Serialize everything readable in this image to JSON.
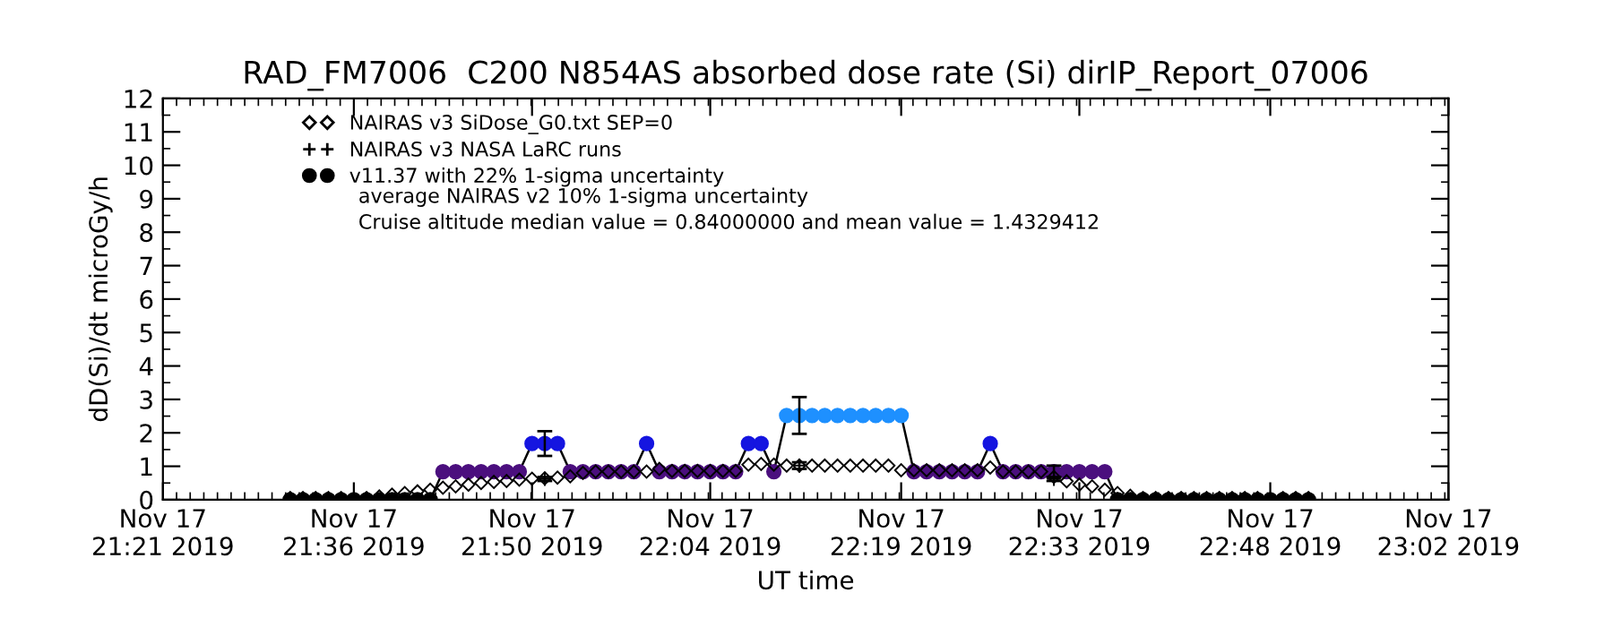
{
  "chart_data": {
    "type": "line",
    "title": "RAD_FM7006  C200 N854AS absorbed dose rate (Si) dirIP_Report_07006",
    "xlabel": "UT time",
    "ylabel": "dD(Si)/dt microGy/h",
    "xlim": [
      "2019-11-17T21:21",
      "2019-11-17T23:02"
    ],
    "xticks": [
      {
        "value": "2019-11-17T21:21",
        "label": "Nov 17\n21:21 2019"
      },
      {
        "value": "2019-11-17T21:36",
        "label": "Nov 17\n21:36 2019"
      },
      {
        "value": "2019-11-17T21:50",
        "label": "Nov 17\n21:50 2019"
      },
      {
        "value": "2019-11-17T22:04",
        "label": "Nov 17\n22:04 2019"
      },
      {
        "value": "2019-11-17T22:19",
        "label": "Nov 17\n22:19 2019"
      },
      {
        "value": "2019-11-17T22:33",
        "label": "Nov 17\n22:33 2019"
      },
      {
        "value": "2019-11-17T22:48",
        "label": "Nov 17\n22:48 2019"
      },
      {
        "value": "2019-11-17T23:02",
        "label": "Nov 17\n23:02 2019"
      }
    ],
    "ylim": [
      0,
      12
    ],
    "yticks": [
      0,
      1,
      2,
      3,
      4,
      5,
      6,
      7,
      8,
      9,
      10,
      11,
      12
    ],
    "legend": "top left",
    "annotations": [
      "average NAIRAS v2 10% 1-sigma uncertainty",
      "Cruise altitude median value = 0.84000000 and mean value = 1.4329412"
    ],
    "series": [
      {
        "name": "NAIRAS v3 SiDose_G0.txt SEP=0",
        "type": "scatter",
        "marker": "diamond",
        "color": "#000000",
        "x": [
          "2019-11-17T21:31",
          "2019-11-17T21:32",
          "2019-11-17T21:33",
          "2019-11-17T21:34",
          "2019-11-17T21:35",
          "2019-11-17T21:36",
          "2019-11-17T21:37",
          "2019-11-17T21:38",
          "2019-11-17T21:39",
          "2019-11-17T21:40",
          "2019-11-17T21:41",
          "2019-11-17T21:42",
          "2019-11-17T21:43",
          "2019-11-17T21:44",
          "2019-11-17T21:45",
          "2019-11-17T21:46",
          "2019-11-17T21:47",
          "2019-11-17T21:48",
          "2019-11-17T21:49",
          "2019-11-17T21:50",
          "2019-11-17T21:51",
          "2019-11-17T21:52",
          "2019-11-17T21:53",
          "2019-11-17T21:54",
          "2019-11-17T21:55",
          "2019-11-17T21:56",
          "2019-11-17T21:57",
          "2019-11-17T21:58",
          "2019-11-17T21:59",
          "2019-11-17T22:00",
          "2019-11-17T22:01",
          "2019-11-17T22:02",
          "2019-11-17T22:03",
          "2019-11-17T22:04",
          "2019-11-17T22:05",
          "2019-11-17T22:06",
          "2019-11-17T22:07",
          "2019-11-17T22:08",
          "2019-11-17T22:09",
          "2019-11-17T22:10",
          "2019-11-17T22:11",
          "2019-11-17T22:12",
          "2019-11-17T22:13",
          "2019-11-17T22:14",
          "2019-11-17T22:15",
          "2019-11-17T22:16",
          "2019-11-17T22:17",
          "2019-11-17T22:18",
          "2019-11-17T22:19",
          "2019-11-17T22:20",
          "2019-11-17T22:21",
          "2019-11-17T22:22",
          "2019-11-17T22:23",
          "2019-11-17T22:24",
          "2019-11-17T22:25",
          "2019-11-17T22:26",
          "2019-11-17T22:27",
          "2019-11-17T22:28",
          "2019-11-17T22:29",
          "2019-11-17T22:30",
          "2019-11-17T22:31",
          "2019-11-17T22:32",
          "2019-11-17T22:33",
          "2019-11-17T22:34",
          "2019-11-17T22:35",
          "2019-11-17T22:36",
          "2019-11-17T22:37",
          "2019-11-17T22:38",
          "2019-11-17T22:39",
          "2019-11-17T22:40",
          "2019-11-17T22:41",
          "2019-11-17T22:42",
          "2019-11-17T22:43",
          "2019-11-17T22:44",
          "2019-11-17T22:45",
          "2019-11-17T22:46",
          "2019-11-17T22:47",
          "2019-11-17T22:48",
          "2019-11-17T22:49",
          "2019-11-17T22:50",
          "2019-11-17T22:51"
        ],
        "values": [
          0.05,
          0.05,
          0.05,
          0.05,
          0.05,
          null,
          0.05,
          0.1,
          0.15,
          0.2,
          0.25,
          0.3,
          0.36,
          0.4,
          0.45,
          0.5,
          0.53,
          0.56,
          0.6,
          0.63,
          0.64,
          0.66,
          0.7,
          0.8,
          0.84,
          0.84,
          0.84,
          0.84,
          0.84,
          0.92,
          0.86,
          0.86,
          0.86,
          0.86,
          0.86,
          0.86,
          1.05,
          1.07,
          1.05,
          1.02,
          1.02,
          1.02,
          1.02,
          1.02,
          1.02,
          1.02,
          1.02,
          1.02,
          0.88,
          0.88,
          0.88,
          0.88,
          0.88,
          0.88,
          0.88,
          0.96,
          0.84,
          0.84,
          0.84,
          0.84,
          0.68,
          0.55,
          0.45,
          0.4,
          0.3,
          0.2,
          0.12,
          0.05,
          0.05,
          0.05,
          0.05,
          0.05,
          0.05,
          0.05,
          0.05,
          0.05,
          0.05,
          null,
          0.05,
          0.05,
          0.05
        ]
      },
      {
        "name": "NAIRAS v3 NASA LaRC runs",
        "type": "scatter",
        "marker": "cross",
        "color": "#000000",
        "x": [
          "2019-11-17T21:51",
          "2019-11-17T22:11",
          "2019-11-17T22:31"
        ],
        "values": [
          0.62,
          1.02,
          0.62
        ],
        "errors": [
          0.06,
          0.1,
          0.06
        ]
      },
      {
        "name": "v11.37 with 22% 1-sigma uncertainty",
        "marker": "circle",
        "color": "#000000",
        "x": [
          "2019-11-17T21:31",
          "2019-11-17T21:32",
          "2019-11-17T21:33",
          "2019-11-17T21:34",
          "2019-11-17T21:35",
          "2019-11-17T21:36",
          "2019-11-17T21:37",
          "2019-11-17T21:38",
          "2019-11-17T21:39",
          "2019-11-17T21:40",
          "2019-11-17T21:41",
          "2019-11-17T21:42",
          "2019-11-17T21:43",
          "2019-11-17T21:44",
          "2019-11-17T21:45",
          "2019-11-17T21:46",
          "2019-11-17T21:47",
          "2019-11-17T21:48",
          "2019-11-17T21:49",
          "2019-11-17T21:50",
          "2019-11-17T21:51",
          "2019-11-17T21:52",
          "2019-11-17T21:53",
          "2019-11-17T21:54",
          "2019-11-17T21:55",
          "2019-11-17T21:56",
          "2019-11-17T21:57",
          "2019-11-17T21:58",
          "2019-11-17T21:59",
          "2019-11-17T22:00",
          "2019-11-17T22:01",
          "2019-11-17T22:02",
          "2019-11-17T22:03",
          "2019-11-17T22:04",
          "2019-11-17T22:05",
          "2019-11-17T22:06",
          "2019-11-17T22:07",
          "2019-11-17T22:08",
          "2019-11-17T22:09",
          "2019-11-17T22:10",
          "2019-11-17T22:11",
          "2019-11-17T22:12",
          "2019-11-17T22:13",
          "2019-11-17T22:14",
          "2019-11-17T22:15",
          "2019-11-17T22:16",
          "2019-11-17T22:17",
          "2019-11-17T22:18",
          "2019-11-17T22:19",
          "2019-11-17T22:20",
          "2019-11-17T22:21",
          "2019-11-17T22:22",
          "2019-11-17T22:23",
          "2019-11-17T22:24",
          "2019-11-17T22:25",
          "2019-11-17T22:26",
          "2019-11-17T22:27",
          "2019-11-17T22:28",
          "2019-11-17T22:29",
          "2019-11-17T22:30",
          "2019-11-17T22:31",
          "2019-11-17T22:32",
          "2019-11-17T22:33",
          "2019-11-17T22:34",
          "2019-11-17T22:35",
          "2019-11-17T22:36",
          "2019-11-17T22:37",
          "2019-11-17T22:38",
          "2019-11-17T22:39",
          "2019-11-17T22:40",
          "2019-11-17T22:41",
          "2019-11-17T22:42",
          "2019-11-17T22:43",
          "2019-11-17T22:44",
          "2019-11-17T22:45",
          "2019-11-17T22:46",
          "2019-11-17T22:47",
          "2019-11-17T22:48",
          "2019-11-17T22:49",
          "2019-11-17T22:50",
          "2019-11-17T22:51"
        ],
        "values": [
          0,
          0,
          0,
          0,
          0,
          0,
          0,
          0,
          0,
          0,
          0,
          0,
          0.84,
          0.84,
          0.84,
          0.84,
          0.84,
          0.84,
          0.84,
          1.68,
          1.68,
          1.68,
          0.84,
          0.84,
          0.84,
          0.84,
          0.84,
          0.84,
          1.68,
          0.84,
          0.84,
          0.84,
          0.84,
          0.84,
          0.84,
          0.84,
          1.68,
          1.68,
          0.84,
          2.52,
          2.52,
          2.52,
          2.52,
          2.52,
          2.52,
          2.52,
          2.52,
          2.52,
          2.52,
          0.84,
          0.84,
          0.84,
          0.84,
          0.84,
          0.84,
          1.68,
          0.84,
          0.84,
          0.84,
          0.84,
          0.84,
          0.84,
          0.84,
          0.84,
          0.84,
          0,
          0,
          0,
          0,
          0,
          0,
          0,
          0,
          0,
          0,
          0,
          0,
          0,
          0,
          0,
          0
        ],
        "colors": [
          "#000000",
          "#000000",
          "#000000",
          "#000000",
          "#000000",
          "#000000",
          "#000000",
          "#000000",
          "#000000",
          "#000000",
          "#000000",
          "#000000",
          "#4b0f7e",
          "#4b0f7e",
          "#4b0f7e",
          "#4b0f7e",
          "#4b0f7e",
          "#4b0f7e",
          "#4b0f7e",
          "#1515e0",
          "#1515e0",
          "#1515e0",
          "#4b0f7e",
          "#4b0f7e",
          "#4b0f7e",
          "#4b0f7e",
          "#4b0f7e",
          "#4b0f7e",
          "#1515e0",
          "#4b0f7e",
          "#4b0f7e",
          "#4b0f7e",
          "#4b0f7e",
          "#4b0f7e",
          "#4b0f7e",
          "#4b0f7e",
          "#1515e0",
          "#1515e0",
          "#4b0f7e",
          "#1e90ff",
          "#1e90ff",
          "#1e90ff",
          "#1e90ff",
          "#1e90ff",
          "#1e90ff",
          "#1e90ff",
          "#1e90ff",
          "#1e90ff",
          "#1e90ff",
          "#4b0f7e",
          "#4b0f7e",
          "#4b0f7e",
          "#4b0f7e",
          "#4b0f7e",
          "#4b0f7e",
          "#1515e0",
          "#4b0f7e",
          "#4b0f7e",
          "#4b0f7e",
          "#4b0f7e",
          "#4b0f7e",
          "#4b0f7e",
          "#4b0f7e",
          "#4b0f7e",
          "#4b0f7e",
          "#000000",
          "#000000",
          "#000000",
          "#000000",
          "#000000",
          "#000000",
          "#000000",
          "#000000",
          "#000000",
          "#000000",
          "#000000",
          "#000000",
          "#000000",
          "#000000",
          "#000000",
          "#000000"
        ],
        "errors": [
          null,
          null,
          null,
          null,
          null,
          null,
          null,
          null,
          null,
          null,
          null,
          null,
          null,
          null,
          null,
          null,
          null,
          null,
          null,
          null,
          0.37,
          null,
          null,
          null,
          null,
          null,
          null,
          null,
          null,
          null,
          null,
          null,
          null,
          null,
          null,
          null,
          null,
          null,
          null,
          null,
          0.55,
          null,
          null,
          null,
          null,
          null,
          null,
          null,
          null,
          null,
          null,
          null,
          null,
          null,
          null,
          null,
          null,
          null,
          null,
          null,
          0.18,
          null,
          null,
          null,
          null,
          null,
          null,
          null,
          null,
          null,
          null,
          null,
          null,
          null,
          null,
          null,
          null,
          null,
          null,
          null,
          null
        ]
      }
    ]
  }
}
